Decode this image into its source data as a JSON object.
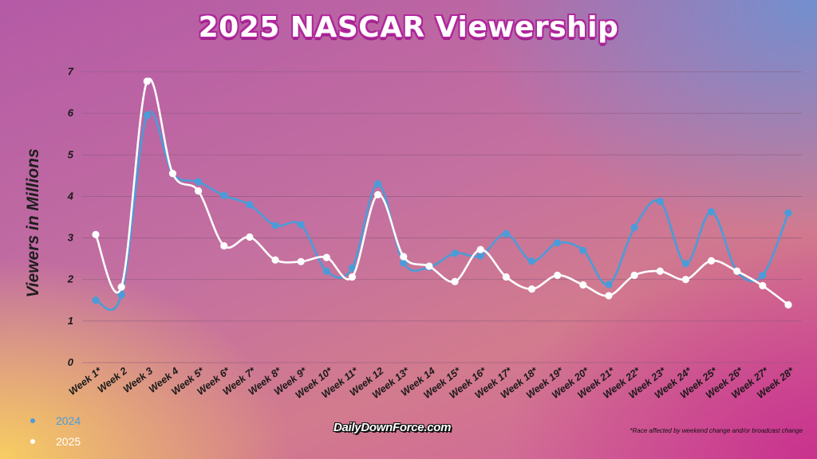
{
  "title": "2025 NASCAR Viewership",
  "brand": "DailyDownForce.com",
  "footnote": "*Race affected by weekend change and/or broadcast change",
  "colors": {
    "series_2024": "#4a9cd8",
    "series_2025": "#ffffff",
    "grid": "#8a5a7a",
    "title_outline": "#b0269c"
  },
  "chart_data": {
    "type": "line",
    "ylabel": "Viewers in Millions",
    "ylim": [
      0,
      7
    ],
    "yticks": [
      0,
      1,
      2,
      3,
      4,
      5,
      6,
      7
    ],
    "grid": true,
    "legend_position": "bottom-left",
    "categories": [
      "Week 1*",
      "Week 2",
      "Week 3",
      "Week 4",
      "Week 5*",
      "Week 6*",
      "Week 7*",
      "Week 8*",
      "Week 9*",
      "Week 10*",
      "Week 11*",
      "Week 12",
      "Week 13*",
      "Week 14",
      "Week 15*",
      "Week 16*",
      "Week 17*",
      "Week 18*",
      "Week 19*",
      "Week 20*",
      "Week 21*",
      "Week 22*",
      "Week 23*",
      "Week 24*",
      "Week 25*",
      "Week 26*",
      "Week 27*",
      "Week 28*"
    ],
    "series": [
      {
        "name": "2024",
        "values": [
          1.5,
          1.63,
          5.95,
          4.55,
          4.35,
          4.02,
          3.8,
          3.3,
          3.32,
          2.2,
          2.28,
          4.3,
          2.4,
          2.3,
          2.63,
          2.57,
          3.1,
          2.44,
          2.88,
          2.7,
          1.88,
          3.25,
          3.88,
          2.38,
          3.63,
          2.2,
          2.1,
          3.6
        ]
      },
      {
        "name": "2025",
        "values": [
          3.08,
          1.82,
          6.77,
          4.55,
          4.13,
          2.81,
          3.02,
          2.47,
          2.43,
          2.53,
          2.06,
          4.04,
          2.55,
          2.32,
          1.95,
          2.72,
          2.06,
          1.77,
          2.1,
          1.87,
          1.61,
          2.1,
          2.2,
          2.0,
          2.45,
          2.2,
          1.85,
          1.39
        ]
      }
    ]
  }
}
